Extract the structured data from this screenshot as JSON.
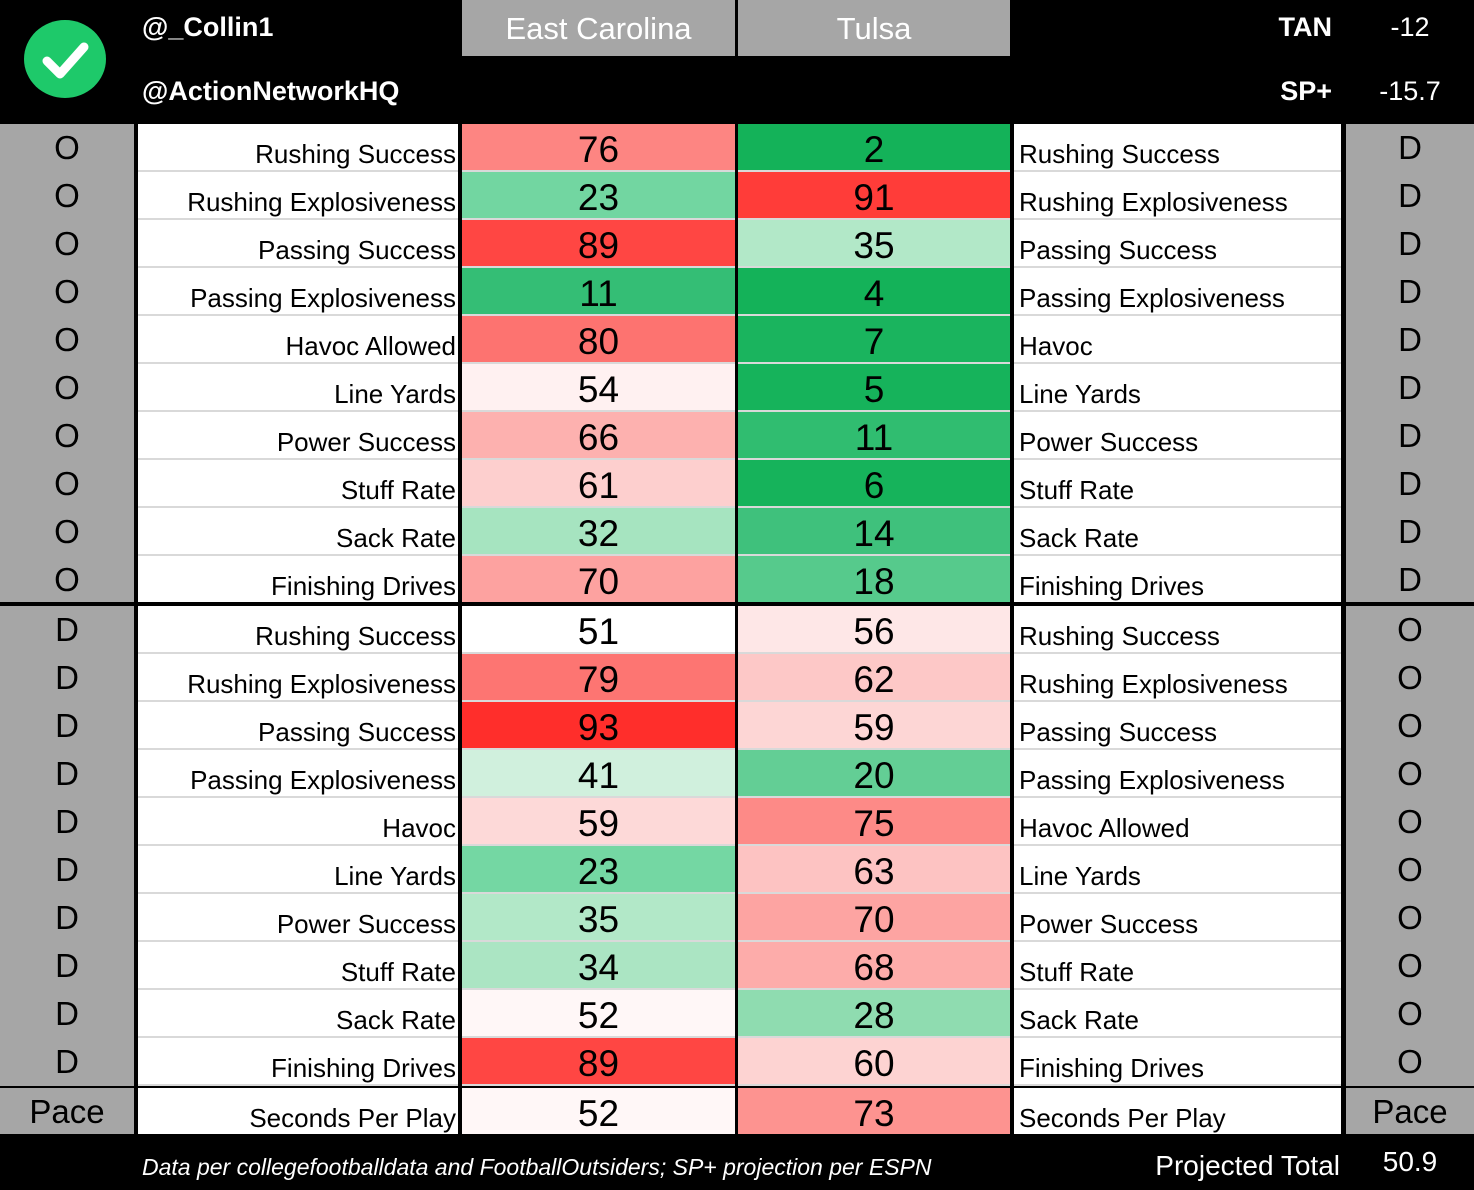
{
  "header": {
    "handle1": "@_Collin1",
    "handle2": "@ActionNetworkHQ",
    "team1": "East Carolina",
    "team2": "Tulsa",
    "tan_label": "TAN",
    "tan_value": "-12",
    "sp_label": "SP+",
    "sp_value": "-15.7",
    "check_icon_color": "#1ec96a"
  },
  "rows": [
    {
      "left_side": "O",
      "left_label": "Rushing Success",
      "v1": 76,
      "c1": "#fd8582",
      "v2": 2,
      "c2": "#14b259",
      "right_label": "Rushing Success",
      "right_side": "D"
    },
    {
      "left_side": "O",
      "left_label": "Rushing Explosiveness",
      "v1": 23,
      "c1": "#72d6a1",
      "v2": 91,
      "c2": "#ff3c39",
      "right_label": "Rushing Explosiveness",
      "right_side": "D"
    },
    {
      "left_side": "O",
      "left_label": "Passing Success",
      "v1": 89,
      "c1": "#ff4643",
      "v2": 35,
      "c2": "#b2e8c8",
      "right_label": "Passing Success",
      "right_side": "D"
    },
    {
      "left_side": "O",
      "left_label": "Passing Explosiveness",
      "v1": 11,
      "c1": "#34be75",
      "v2": 4,
      "c2": "#14b259",
      "right_label": "Passing Explosiveness",
      "right_side": "D"
    },
    {
      "left_side": "O",
      "left_label": "Havoc Allowed",
      "v1": 80,
      "c1": "#fd7370",
      "v2": 7,
      "c2": "#1ab45e",
      "right_label": "Havoc",
      "right_side": "D"
    },
    {
      "left_side": "O",
      "left_label": "Line Yards",
      "v1": 54,
      "c1": "#fff1f1",
      "v2": 5,
      "c2": "#16b35b",
      "right_label": "Line Yards",
      "right_side": "D"
    },
    {
      "left_side": "O",
      "left_label": "Power Success",
      "v1": 66,
      "c1": "#fdb1af",
      "v2": 11,
      "c2": "#30bd70",
      "right_label": "Power Success",
      "right_side": "D"
    },
    {
      "left_side": "O",
      "left_label": "Stuff Rate",
      "v1": 61,
      "c1": "#fdcfce",
      "v2": 6,
      "c2": "#16b35b",
      "right_label": "Stuff Rate",
      "right_side": "D"
    },
    {
      "left_side": "O",
      "left_label": "Sack Rate",
      "v1": 32,
      "c1": "#a6e4c0",
      "v2": 14,
      "c2": "#3fc17c",
      "right_label": "Sack Rate",
      "right_side": "D"
    },
    {
      "left_side": "O",
      "left_label": "Finishing Drives",
      "v1": 70,
      "c1": "#fda2a0",
      "v2": 18,
      "c2": "#56ca8c",
      "right_label": "Finishing Drives",
      "right_side": "D"
    },
    {
      "left_side": "D",
      "left_label": "Rushing Success",
      "v1": 51,
      "c1": "#ffffff",
      "v2": 56,
      "c2": "#fee7e7",
      "right_label": "Rushing Success",
      "right_side": "O"
    },
    {
      "left_side": "D",
      "left_label": "Rushing Explosiveness",
      "v1": 79,
      "c1": "#fd7572",
      "v2": 62,
      "c2": "#fdc8c7",
      "right_label": "Rushing Explosiveness",
      "right_side": "O"
    },
    {
      "left_side": "D",
      "left_label": "Passing Success",
      "v1": 93,
      "c1": "#ff2e2b",
      "v2": 59,
      "c2": "#fdd6d5",
      "right_label": "Passing Success",
      "right_side": "O"
    },
    {
      "left_side": "D",
      "left_label": "Passing Explosiveness",
      "v1": 41,
      "c1": "#d0f0dd",
      "v2": 20,
      "c2": "#63ce95",
      "right_label": "Passing Explosiveness",
      "right_side": "O"
    },
    {
      "left_side": "D",
      "left_label": "Havoc",
      "v1": 59,
      "c1": "#fdd9d8",
      "v2": 75,
      "c2": "#fd8a87",
      "right_label": "Havoc Allowed",
      "right_side": "O"
    },
    {
      "left_side": "D",
      "left_label": "Line Yards",
      "v1": 23,
      "c1": "#74d7a3",
      "v2": 63,
      "c2": "#fdc3c2",
      "right_label": "Line Yards",
      "right_side": "O"
    },
    {
      "left_side": "D",
      "left_label": "Power Success",
      "v1": 35,
      "c1": "#b2e8c8",
      "v2": 70,
      "c2": "#fda4a2",
      "right_label": "Power Success",
      "right_side": "O"
    },
    {
      "left_side": "D",
      "left_label": "Stuff Rate",
      "v1": 34,
      "c1": "#abe5c3",
      "v2": 68,
      "c2": "#fdacaa",
      "right_label": "Stuff Rate",
      "right_side": "O"
    },
    {
      "left_side": "D",
      "left_label": "Sack Rate",
      "v1": 52,
      "c1": "#fff7f7",
      "v2": 28,
      "c2": "#8fdcb0",
      "right_label": "Sack Rate",
      "right_side": "O"
    },
    {
      "left_side": "D",
      "left_label": "Finishing Drives",
      "v1": 89,
      "c1": "#ff4643",
      "v2": 60,
      "c2": "#fdd3d2",
      "right_label": "Finishing Drives",
      "right_side": "O"
    },
    {
      "left_side": "Pace",
      "left_label": "Seconds Per Play",
      "v1": 52,
      "c1": "#fff7f7",
      "v2": 73,
      "c2": "#fd9390",
      "right_label": "Seconds Per Play",
      "right_side": "Pace"
    }
  ],
  "footer": {
    "note": "Data per collegefootballdata and FootballOutsiders; SP+ projection per ESPN",
    "projected_label": "Projected Total",
    "projected_value": "50.9"
  }
}
